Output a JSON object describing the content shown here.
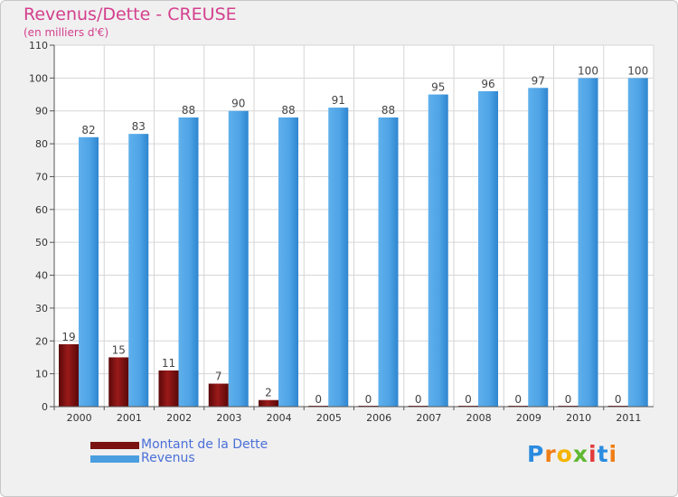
{
  "header": {
    "title": "Revenus/Dette - CREUSE",
    "subtitle": "(en milliers d'€)"
  },
  "chart_data": {
    "type": "bar",
    "categories": [
      "2000",
      "2001",
      "2002",
      "2003",
      "2004",
      "2005",
      "2006",
      "2007",
      "2008",
      "2009",
      "2010",
      "2011"
    ],
    "series": [
      {
        "name": "Montant de la Dette",
        "color": "#7a1010",
        "values": [
          19,
          15,
          11,
          7,
          2,
          0,
          0,
          0,
          0,
          0,
          0,
          0
        ]
      },
      {
        "name": "Revenus",
        "color": "#4a9ee0",
        "values": [
          82,
          83,
          88,
          90,
          88,
          91,
          88,
          95,
          96,
          97,
          100,
          100
        ]
      }
    ],
    "ylim": [
      0,
      110
    ],
    "yticks": [
      0,
      10,
      20,
      30,
      40,
      50,
      60,
      70,
      80,
      90,
      100,
      110
    ],
    "grid": true,
    "legend": "bottom-left"
  },
  "legend": {
    "items": [
      {
        "label": "Montant de la Dette",
        "color": "#7a1010"
      },
      {
        "label": "Revenus",
        "color": "#4a9ee0"
      }
    ]
  },
  "logo": {
    "text": "Proxiti",
    "letters": [
      "P",
      "r",
      "o",
      "x",
      "i",
      "t",
      "i"
    ]
  }
}
